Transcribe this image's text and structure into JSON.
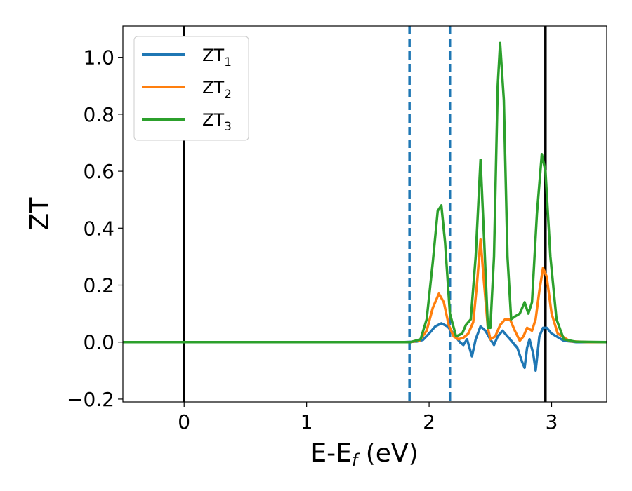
{
  "chart_data": {
    "type": "line",
    "xlabel": "E-E",
    "xlabel_sub": "f",
    "xlabel_unit": " (eV)",
    "ylabel": "ZT",
    "xlim": [
      -0.5,
      3.45
    ],
    "ylim": [
      -0.21,
      1.11
    ],
    "xticks": [
      0,
      1,
      2,
      3
    ],
    "xtick_labels": [
      "0",
      "1",
      "2",
      "3"
    ],
    "yticks": [
      -0.2,
      0.0,
      0.2,
      0.4,
      0.6,
      0.8,
      1.0
    ],
    "ytick_labels": [
      "−0.2",
      "0.0",
      "0.2",
      "0.4",
      "0.6",
      "0.8",
      "1.0"
    ],
    "grid": false,
    "legend_position": "top-left",
    "vlines": [
      {
        "x": 0.0,
        "style": "solid",
        "color": "#000000"
      },
      {
        "x": 2.95,
        "style": "solid",
        "color": "#000000"
      },
      {
        "x": 1.84,
        "style": "dashed",
        "color": "#1f77b4"
      },
      {
        "x": 2.17,
        "style": "dashed",
        "color": "#1f77b4"
      }
    ],
    "series": [
      {
        "name": "ZT",
        "sub": "1",
        "color": "#1f77b4",
        "points": [
          [
            -0.5,
            0
          ],
          [
            1.8,
            0
          ],
          [
            1.9,
            0.002
          ],
          [
            1.95,
            0.008
          ],
          [
            2.0,
            0.03
          ],
          [
            2.05,
            0.055
          ],
          [
            2.1,
            0.066
          ],
          [
            2.15,
            0.055
          ],
          [
            2.2,
            0.03
          ],
          [
            2.25,
            0.0
          ],
          [
            2.28,
            -0.01
          ],
          [
            2.31,
            0.01
          ],
          [
            2.33,
            -0.02
          ],
          [
            2.35,
            -0.05
          ],
          [
            2.38,
            0.01
          ],
          [
            2.42,
            0.055
          ],
          [
            2.46,
            0.04
          ],
          [
            2.5,
            0.01
          ],
          [
            2.53,
            -0.01
          ],
          [
            2.56,
            0.02
          ],
          [
            2.6,
            0.04
          ],
          [
            2.64,
            0.02
          ],
          [
            2.68,
            0.0
          ],
          [
            2.72,
            -0.02
          ],
          [
            2.76,
            -0.07
          ],
          [
            2.78,
            -0.09
          ],
          [
            2.8,
            -0.02
          ],
          [
            2.82,
            0.01
          ],
          [
            2.85,
            -0.04
          ],
          [
            2.87,
            -0.1
          ],
          [
            2.9,
            0.02
          ],
          [
            2.93,
            0.05
          ],
          [
            2.96,
            0.05
          ],
          [
            3.0,
            0.03
          ],
          [
            3.1,
            0.005
          ],
          [
            3.2,
            0
          ],
          [
            3.45,
            0
          ]
        ]
      },
      {
        "name": "ZT",
        "sub": "2",
        "color": "#ff7f0e",
        "points": [
          [
            -0.5,
            0
          ],
          [
            1.85,
            0
          ],
          [
            1.92,
            0.005
          ],
          [
            1.98,
            0.04
          ],
          [
            2.03,
            0.12
          ],
          [
            2.08,
            0.17
          ],
          [
            2.12,
            0.14
          ],
          [
            2.16,
            0.06
          ],
          [
            2.2,
            0.02
          ],
          [
            2.24,
            0.01
          ],
          [
            2.28,
            0.015
          ],
          [
            2.32,
            0.03
          ],
          [
            2.36,
            0.07
          ],
          [
            2.39,
            0.2
          ],
          [
            2.42,
            0.36
          ],
          [
            2.45,
            0.2
          ],
          [
            2.48,
            0.05
          ],
          [
            2.5,
            0.01
          ],
          [
            2.54,
            0.02
          ],
          [
            2.58,
            0.06
          ],
          [
            2.62,
            0.08
          ],
          [
            2.66,
            0.08
          ],
          [
            2.7,
            0.04
          ],
          [
            2.74,
            0.005
          ],
          [
            2.77,
            0.02
          ],
          [
            2.8,
            0.05
          ],
          [
            2.84,
            0.04
          ],
          [
            2.87,
            0.08
          ],
          [
            2.9,
            0.18
          ],
          [
            2.93,
            0.26
          ],
          [
            2.96,
            0.23
          ],
          [
            3.0,
            0.1
          ],
          [
            3.05,
            0.03
          ],
          [
            3.15,
            0.003
          ],
          [
            3.3,
            0
          ],
          [
            3.45,
            0
          ]
        ]
      },
      {
        "name": "ZT",
        "sub": "3",
        "color": "#2ca02c",
        "points": [
          [
            -0.5,
            0
          ],
          [
            1.85,
            0
          ],
          [
            1.93,
            0.01
          ],
          [
            1.98,
            0.08
          ],
          [
            2.03,
            0.28
          ],
          [
            2.07,
            0.46
          ],
          [
            2.1,
            0.48
          ],
          [
            2.13,
            0.35
          ],
          [
            2.17,
            0.1
          ],
          [
            2.22,
            0.02
          ],
          [
            2.27,
            0.03
          ],
          [
            2.3,
            0.06
          ],
          [
            2.34,
            0.08
          ],
          [
            2.38,
            0.3
          ],
          [
            2.42,
            0.64
          ],
          [
            2.45,
            0.35
          ],
          [
            2.48,
            0.05
          ],
          [
            2.5,
            0.05
          ],
          [
            2.53,
            0.3
          ],
          [
            2.56,
            0.9
          ],
          [
            2.58,
            1.05
          ],
          [
            2.61,
            0.85
          ],
          [
            2.64,
            0.3
          ],
          [
            2.67,
            0.08
          ],
          [
            2.7,
            0.09
          ],
          [
            2.74,
            0.1
          ],
          [
            2.78,
            0.14
          ],
          [
            2.81,
            0.1
          ],
          [
            2.84,
            0.14
          ],
          [
            2.88,
            0.45
          ],
          [
            2.92,
            0.66
          ],
          [
            2.95,
            0.6
          ],
          [
            2.99,
            0.3
          ],
          [
            3.04,
            0.08
          ],
          [
            3.1,
            0.01
          ],
          [
            3.2,
            0.001
          ],
          [
            3.45,
            0
          ]
        ]
      }
    ]
  }
}
